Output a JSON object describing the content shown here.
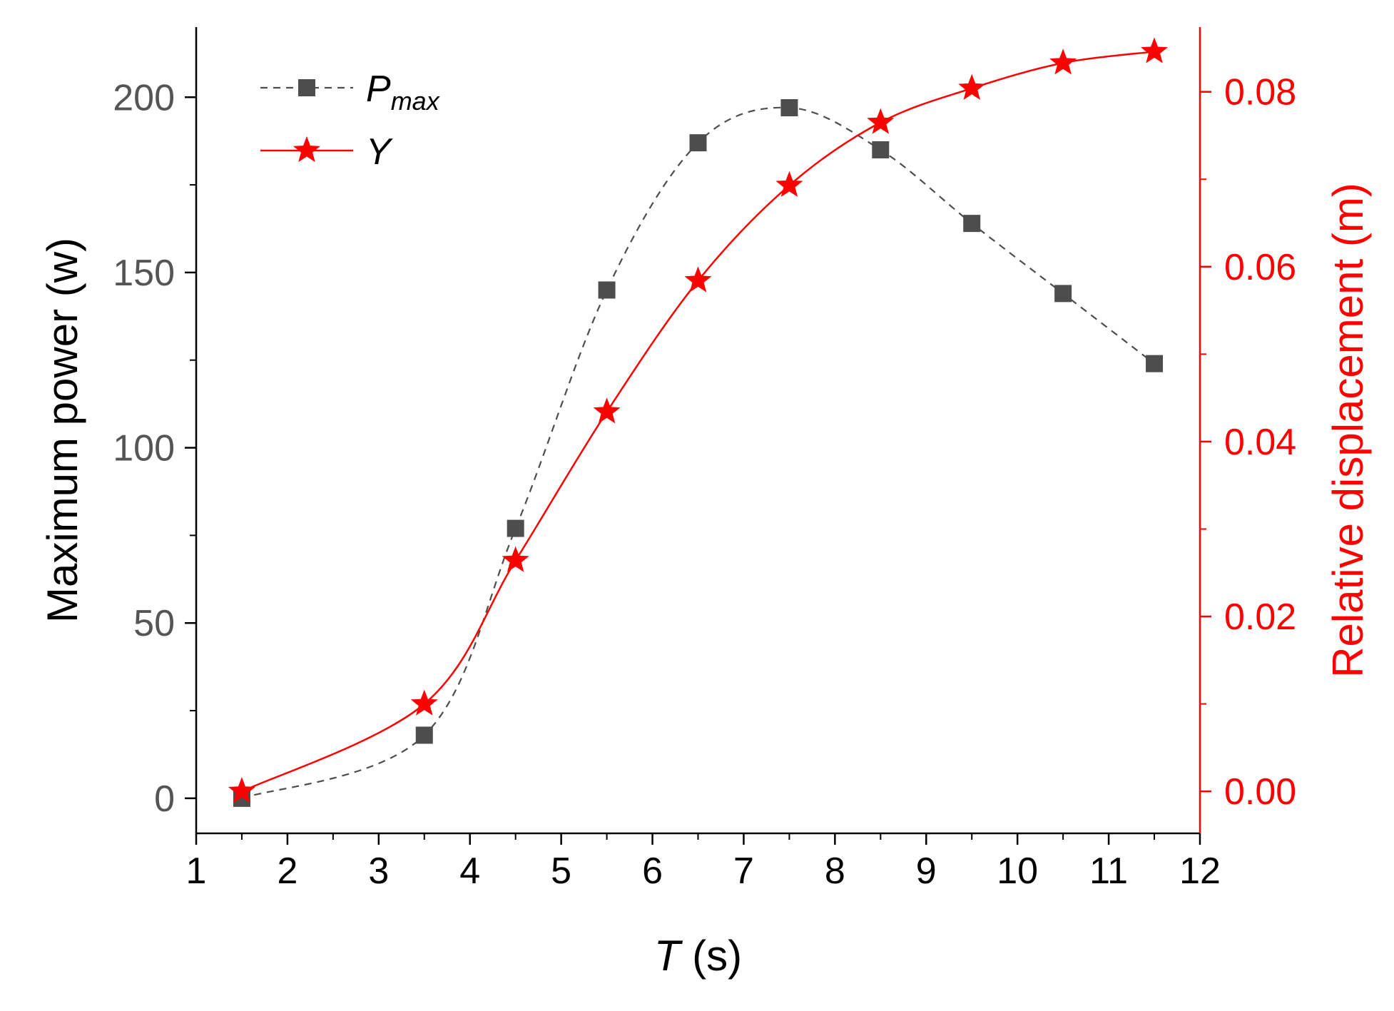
{
  "chart_data": {
    "type": "line",
    "title": "",
    "xlabel": {
      "var": "T",
      "unit": " (s)"
    },
    "ylabel_left": "Maximum power (w)",
    "ylabel_right": "Relative displacement (m)",
    "xlim": [
      1,
      12
    ],
    "ylim_left": [
      -10,
      220
    ],
    "ylim_right": [
      -0.0048,
      0.0874
    ],
    "x_ticks": [
      1,
      2,
      3,
      4,
      5,
      6,
      7,
      8,
      9,
      10,
      11,
      12
    ],
    "y_left_ticks": [
      0,
      50,
      100,
      150,
      200
    ],
    "y_right_ticks": [
      "0.00",
      "0.02",
      "0.04",
      "0.06",
      "0.08"
    ],
    "grid": false,
    "legend_position": "top-left",
    "series": [
      {
        "name": "P",
        "name_subscript": "max",
        "axis": "left",
        "color": "#4d4d4d",
        "marker": "square",
        "line": "dashed",
        "x": [
          1.5,
          3.5,
          4.5,
          5.5,
          6.5,
          7.5,
          8.5,
          9.5,
          10.5,
          11.5
        ],
        "y": [
          0,
          18,
          77,
          145,
          187,
          197,
          185,
          164,
          144,
          124
        ]
      },
      {
        "name": "Y",
        "name_subscript": "",
        "axis": "right",
        "color": "#ff0000",
        "marker": "star",
        "line": "solid",
        "x": [
          1.5,
          3.5,
          4.5,
          5.5,
          6.5,
          7.5,
          8.5,
          9.5,
          10.5,
          11.5
        ],
        "y": [
          0.0,
          0.01,
          0.0264,
          0.0434,
          0.0584,
          0.0693,
          0.0765,
          0.0804,
          0.0833,
          0.0846
        ]
      }
    ],
    "axis_colors": {
      "left": "#000000",
      "left_ticks": "#555555",
      "right": "#ff0000",
      "bottom": "#000000"
    }
  }
}
